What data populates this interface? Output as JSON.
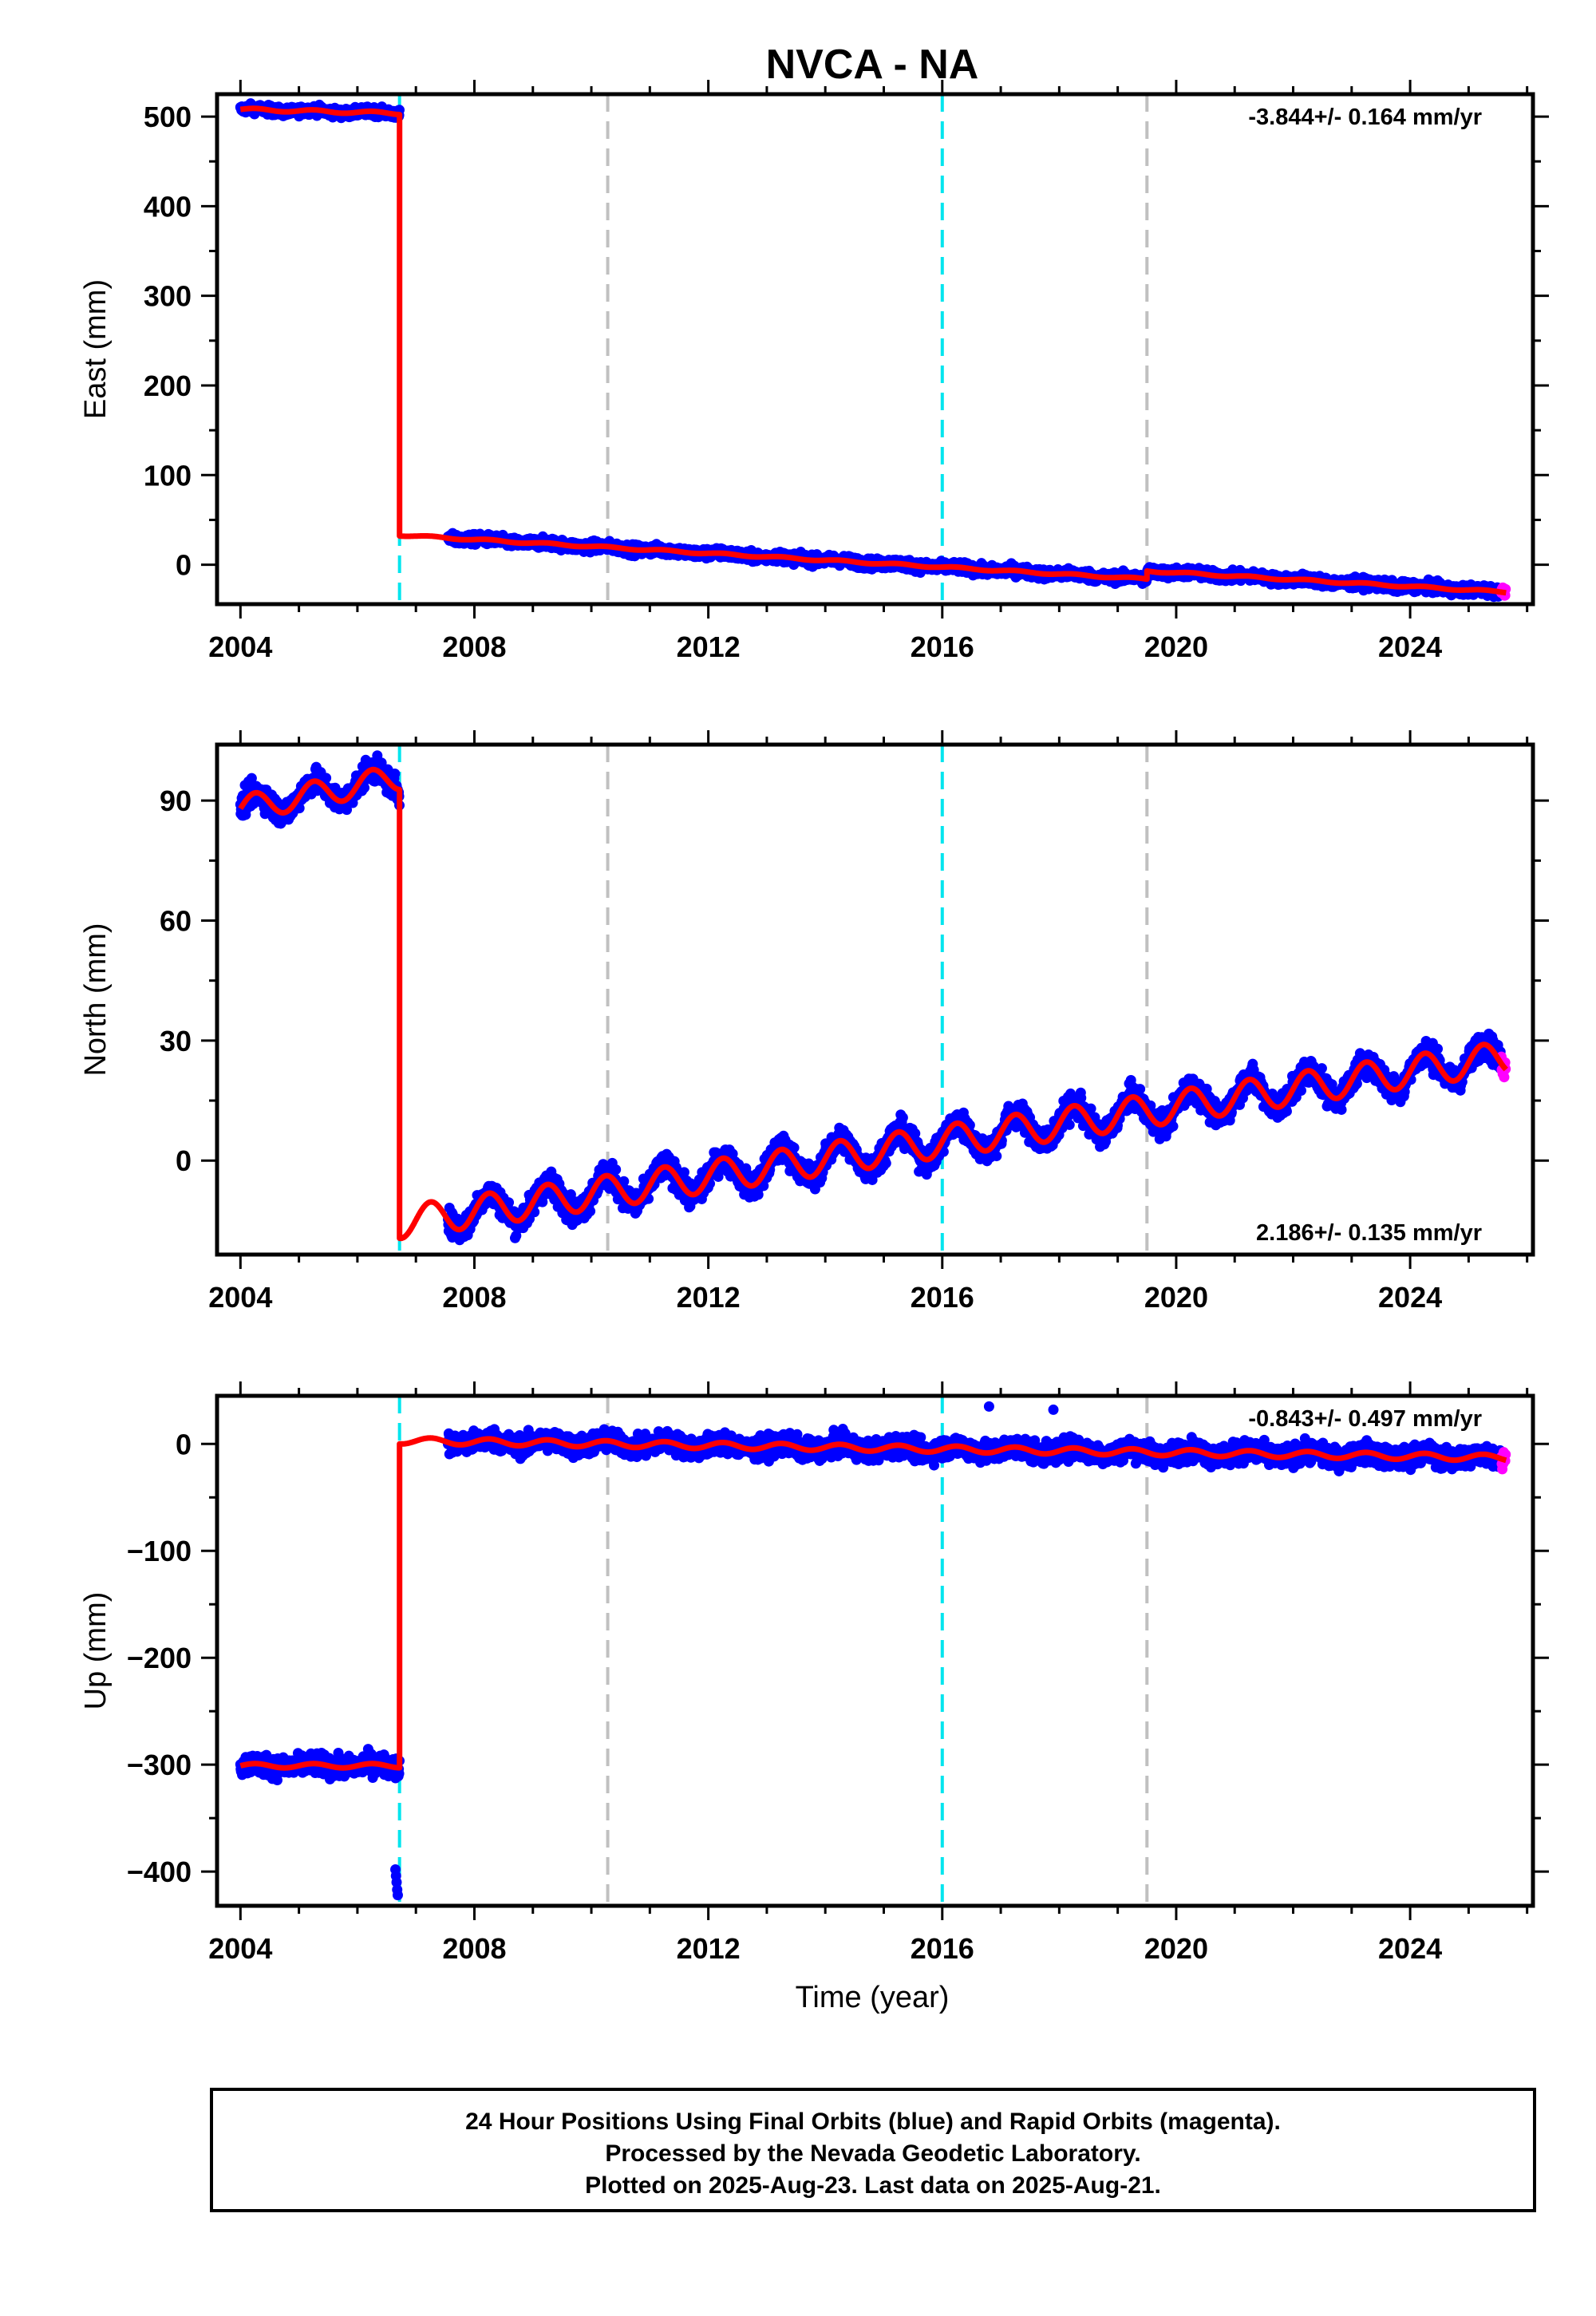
{
  "title": "NVCA - NA",
  "colors": {
    "final_points": "#0000ff",
    "rapid_points": "#ff00ff",
    "model": "#ff0000",
    "event_cyan": "#00e5ee",
    "event_gray": "#c0c0c0"
  },
  "footer": {
    "line1": "24 Hour Positions Using Final Orbits (blue) and Rapid Orbits (magenta).",
    "line2": "Processed by the Nevada Geodetic Laboratory.",
    "line3": "Plotted on 2025-Aug-23. Last data on 2025-Aug-21."
  },
  "chart_data": [
    {
      "type": "scatter",
      "panel": "east",
      "ylabel": "East (mm)",
      "xlabel": "",
      "xlim": [
        2003.6,
        2026.1
      ],
      "ylim": [
        -44,
        525
      ],
      "x_ticks": [
        "2004",
        "2008",
        "2012",
        "2016",
        "2020",
        "2024"
      ],
      "y_ticks": [
        "0",
        "100",
        "200",
        "300",
        "400",
        "500"
      ],
      "rate_text": "-3.844+/- 0.164 mm/yr",
      "rate_position": "top-right",
      "event_lines": [
        {
          "year": 2006.72,
          "color": "cyan"
        },
        {
          "year": 2010.28,
          "color": "gray"
        },
        {
          "year": 2016.0,
          "color": "cyan"
        },
        {
          "year": 2019.5,
          "color": "gray"
        }
      ],
      "model_segments": [
        {
          "x_start": 2004.0,
          "x_end": 2006.72,
          "y_start": 508,
          "slope": -1.6,
          "seasonal_amp": 1.5
        },
        {
          "x_start": 2006.72,
          "x_end": 2019.5,
          "y_start": 33,
          "slope": -3.844,
          "seasonal_amp": 1.0
        },
        {
          "x_start": 2019.5,
          "x_end": 2025.64,
          "y_start": -7,
          "slope": -3.844,
          "seasonal_amp": 1.0
        }
      ],
      "data_points": [
        {
          "x_start": 2004.0,
          "x_end": 2006.72,
          "scatter": 3.5
        },
        {
          "x_start": 2007.55,
          "x_end": 2025.55,
          "scatter": 4
        }
      ],
      "rapid_points": {
        "x_start": 2025.56,
        "x_end": 2025.64,
        "scatter": 4
      }
    },
    {
      "type": "scatter",
      "panel": "north",
      "ylabel": "North (mm)",
      "xlabel": "",
      "xlim": [
        2003.6,
        2026.1
      ],
      "ylim": [
        -23.5,
        104
      ],
      "x_ticks": [
        "2004",
        "2008",
        "2012",
        "2016",
        "2020",
        "2024"
      ],
      "y_ticks": [
        "0",
        "30",
        "60",
        "90"
      ],
      "rate_text": "2.186+/- 0.135 mm/yr",
      "rate_position": "bottom-right",
      "event_lines": [
        {
          "year": 2006.72,
          "color": "cyan"
        },
        {
          "year": 2010.28,
          "color": "gray"
        },
        {
          "year": 2016.0,
          "color": "cyan"
        },
        {
          "year": 2019.5,
          "color": "gray"
        }
      ],
      "model_segments": [
        {
          "x_start": 2004.0,
          "x_end": 2006.72,
          "y_start": 88,
          "slope": 2.9,
          "seasonal_amp": 3.2
        },
        {
          "x_start": 2006.72,
          "x_end": 2025.64,
          "y_start": -15.5,
          "slope": 2.186,
          "seasonal_amp": 4.0
        }
      ],
      "data_points": [
        {
          "x_start": 2004.0,
          "x_end": 2006.72,
          "scatter": 2.2
        },
        {
          "x_start": 2007.55,
          "x_end": 2025.55,
          "scatter": 2.3
        }
      ],
      "rapid_points": {
        "x_start": 2025.56,
        "x_end": 2025.64,
        "scatter": 2
      }
    },
    {
      "type": "scatter",
      "panel": "up",
      "ylabel": "Up (mm)",
      "xlabel": "Time (year)",
      "xlim": [
        2003.6,
        2026.1
      ],
      "ylim": [
        -432,
        45
      ],
      "x_ticks": [
        "2004",
        "2008",
        "2012",
        "2016",
        "2020",
        "2024"
      ],
      "y_ticks": [
        "−400",
        "−300",
        "−200",
        "−100",
        "0"
      ],
      "rate_text": "-0.843+/- 0.497 mm/yr",
      "rate_position": "top-right",
      "event_lines": [
        {
          "year": 2006.72,
          "color": "cyan"
        },
        {
          "year": 2010.28,
          "color": "gray"
        },
        {
          "year": 2016.0,
          "color": "cyan"
        },
        {
          "year": 2019.5,
          "color": "gray"
        }
      ],
      "model_segments": [
        {
          "x_start": 2004.0,
          "x_end": 2006.72,
          "y_start": -301,
          "slope": 0,
          "seasonal_amp": 2.0
        },
        {
          "x_start": 2006.72,
          "x_end": 2025.64,
          "y_start": 3,
          "slope": -0.843,
          "seasonal_amp": 3.0
        }
      ],
      "data_points": [
        {
          "x_start": 2004.0,
          "x_end": 2006.72,
          "scatter": 7
        },
        {
          "x_start": 2007.55,
          "x_end": 2025.55,
          "scatter": 7
        }
      ],
      "rapid_points": {
        "x_start": 2025.56,
        "x_end": 2025.64,
        "scatter": 6
      },
      "outliers": [
        {
          "x": 2006.65,
          "y": -398
        },
        {
          "x": 2006.66,
          "y": -404
        },
        {
          "x": 2006.67,
          "y": -410
        },
        {
          "x": 2006.68,
          "y": -417
        },
        {
          "x": 2006.69,
          "y": -422
        },
        {
          "x": 2016.8,
          "y": 35
        },
        {
          "x": 2017.9,
          "y": 32
        }
      ]
    }
  ]
}
